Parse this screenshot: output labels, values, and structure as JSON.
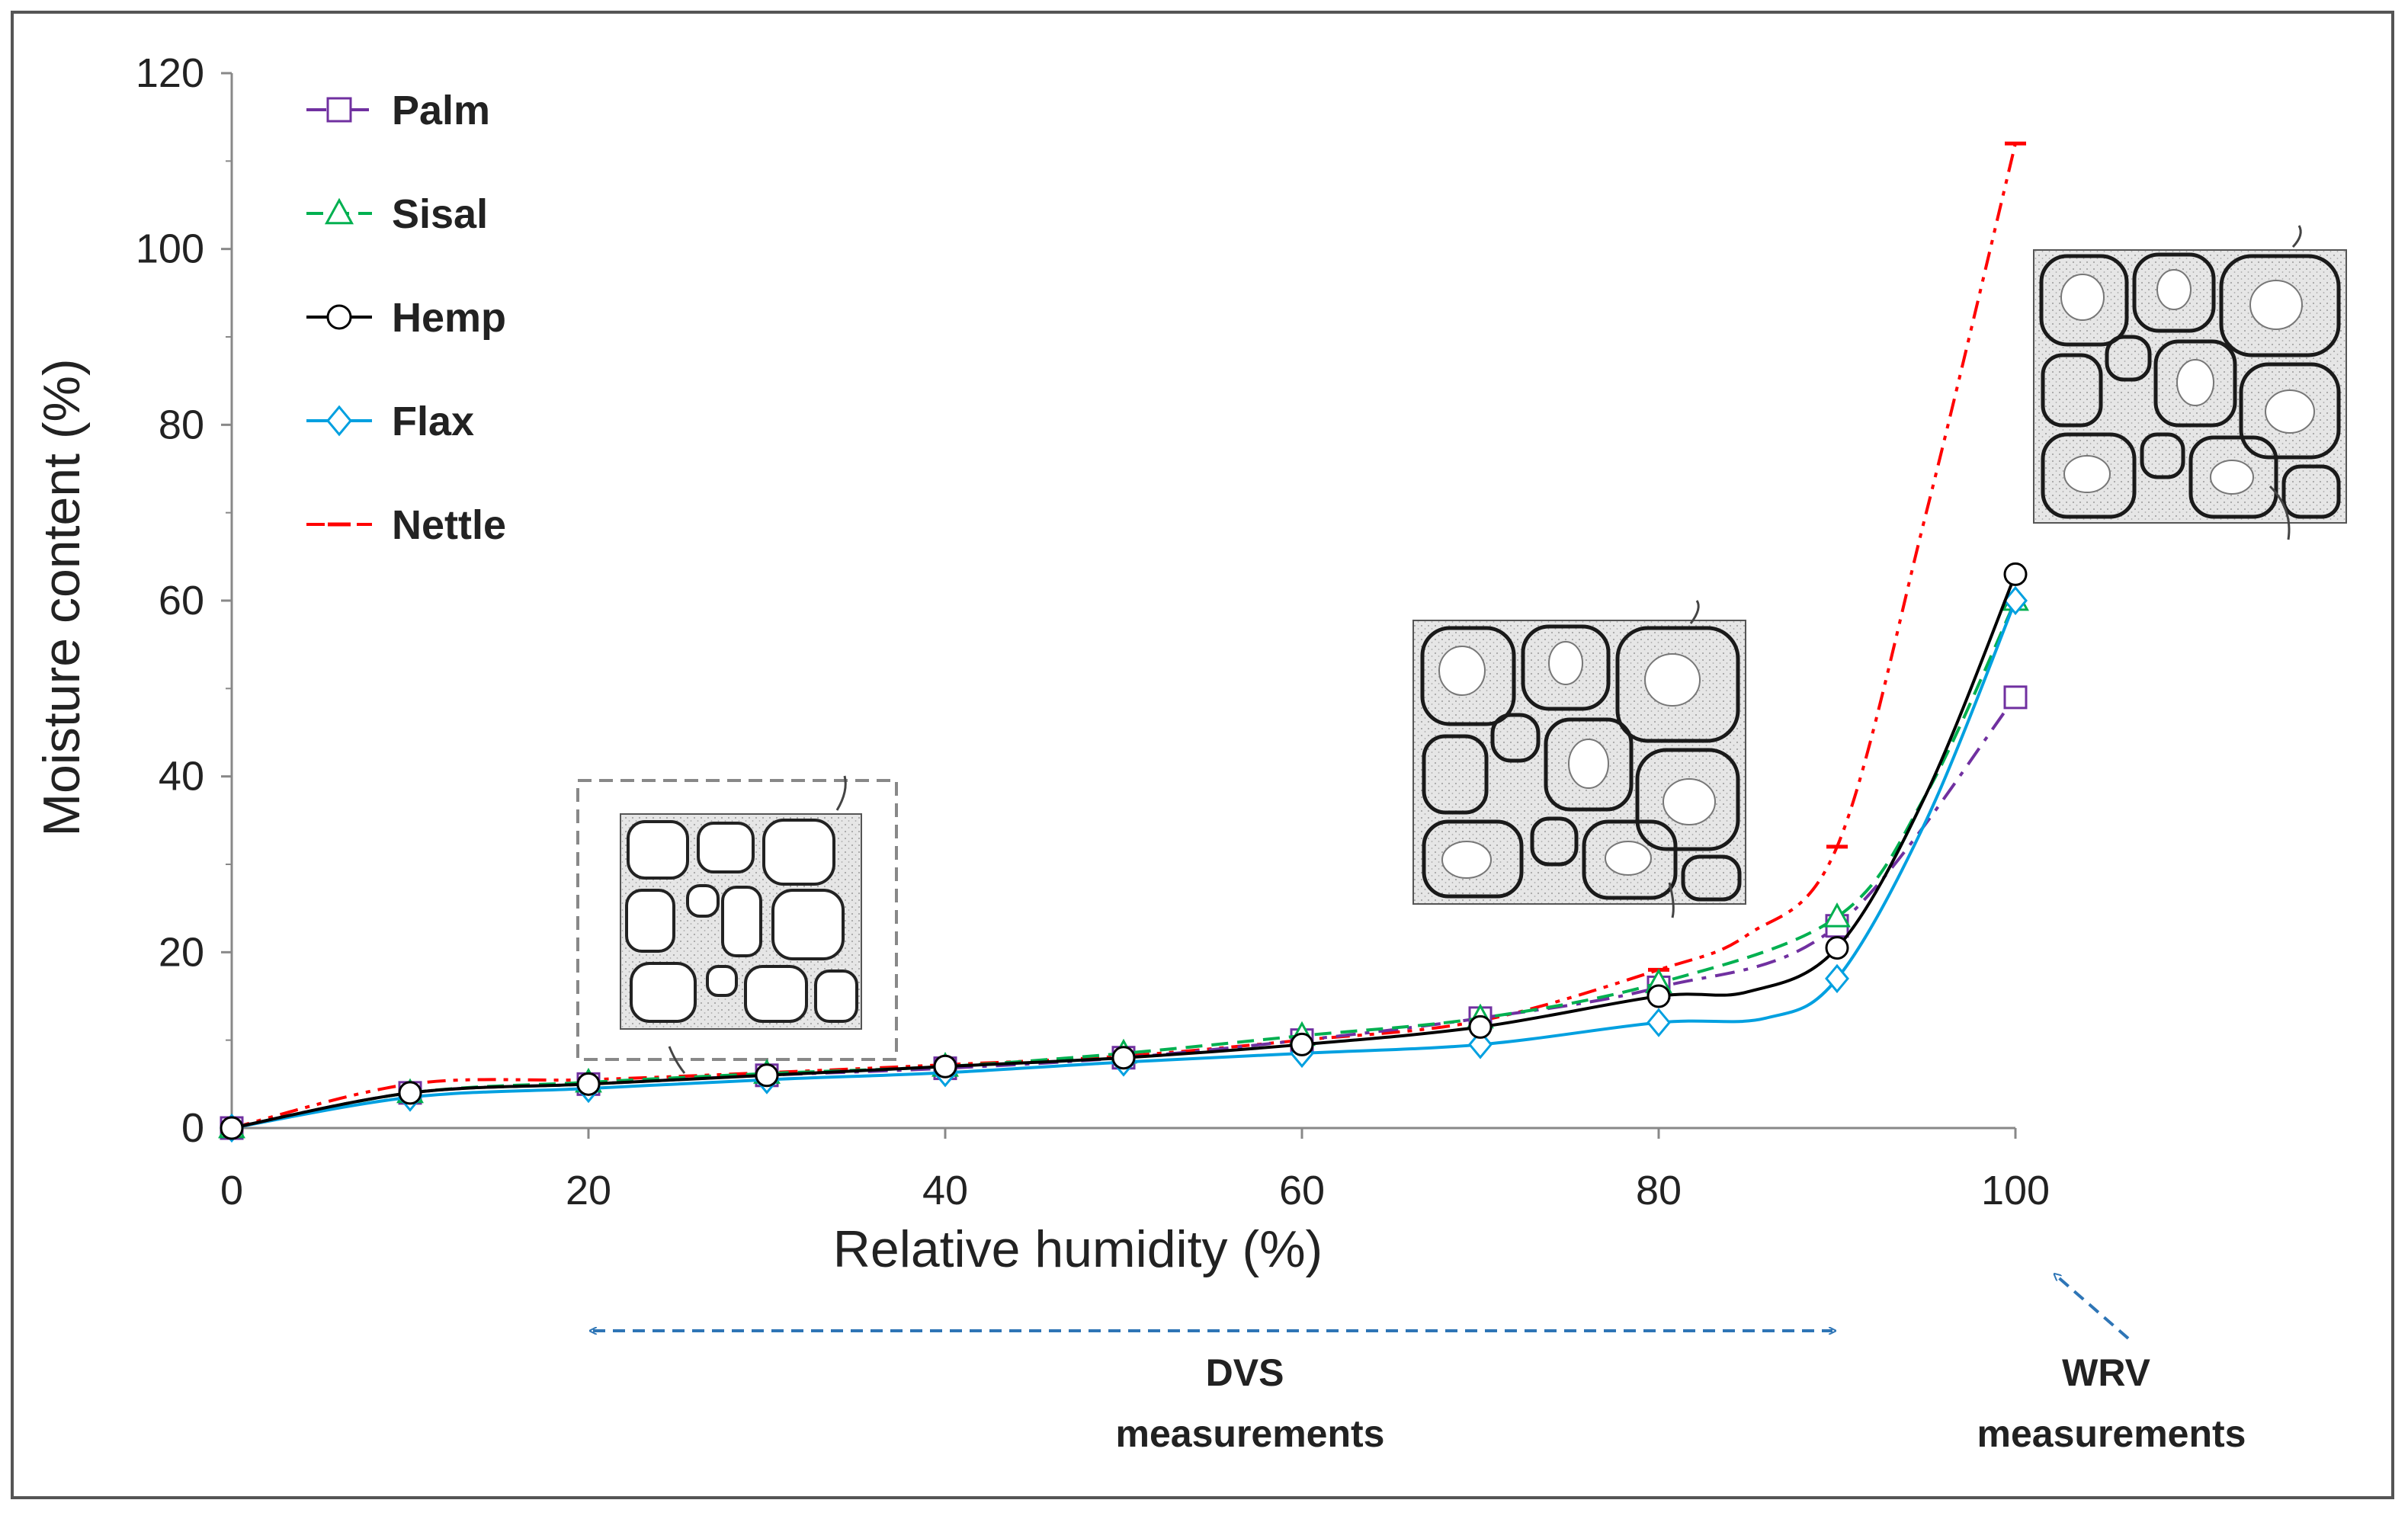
{
  "chart_data": {
    "type": "line",
    "title": "",
    "xlabel": "Relative humidity (%)",
    "ylabel": "Moisture content (%)",
    "xlim": [
      0,
      100
    ],
    "ylim": [
      0,
      120
    ],
    "xticks": [
      0,
      20,
      40,
      60,
      80,
      100
    ],
    "yticks": [
      0,
      20,
      40,
      60,
      80,
      100,
      120
    ],
    "grid": false,
    "legend_position": "top-left",
    "series": [
      {
        "name": "Palm",
        "color": "#7030a0",
        "marker": "square",
        "dash": "dashdot",
        "x": [
          0,
          10,
          20,
          30,
          40,
          50,
          60,
          70,
          80,
          90,
          100
        ],
        "y": [
          0,
          4,
          5,
          6,
          6.8,
          8,
          10,
          12.5,
          16,
          23,
          49
        ]
      },
      {
        "name": "Sisal",
        "color": "#00b050",
        "marker": "triangle",
        "dash": "dashed",
        "x": [
          0,
          10,
          20,
          30,
          40,
          50,
          60,
          70,
          80,
          90,
          95,
          100
        ],
        "y": [
          0,
          4,
          5.2,
          6.2,
          7,
          8.5,
          10.5,
          12.5,
          16.5,
          24,
          38,
          60
        ]
      },
      {
        "name": "Hemp",
        "color": "#000000",
        "marker": "circle",
        "dash": "solid",
        "x": [
          0,
          10,
          20,
          30,
          40,
          50,
          60,
          70,
          80,
          85,
          90,
          95,
          100
        ],
        "y": [
          0,
          4,
          5,
          6,
          7,
          8,
          9.5,
          11.5,
          15,
          15.5,
          20.5,
          38,
          63
        ]
      },
      {
        "name": "Flax",
        "color": "#00a0e0",
        "marker": "diamond",
        "dash": "solid",
        "x": [
          0,
          10,
          20,
          30,
          40,
          50,
          60,
          70,
          80,
          86,
          90,
          95,
          100
        ],
        "y": [
          0,
          3.5,
          4.5,
          5.5,
          6.3,
          7.5,
          8.5,
          9.5,
          12,
          12.5,
          17,
          35,
          60
        ]
      },
      {
        "name": "Nettle",
        "color": "#ff0000",
        "marker": "dash",
        "dash": "dashdotdot",
        "x": [
          0,
          10,
          20,
          30,
          40,
          50,
          60,
          70,
          80,
          85,
          90,
          95,
          100
        ],
        "y": [
          0,
          5,
          5.5,
          6.3,
          7.2,
          8.2,
          10,
          12.2,
          18,
          22,
          32,
          70,
          112
        ]
      }
    ],
    "annotations": [
      {
        "label": "DVS\nmeasurements",
        "lines": [
          "DVS",
          "measurements"
        ],
        "x_range": [
          20,
          90
        ]
      },
      {
        "label": "WRV\nmeasurements",
        "lines": [
          "WRV",
          "measurements"
        ],
        "x": 100
      }
    ]
  }
}
